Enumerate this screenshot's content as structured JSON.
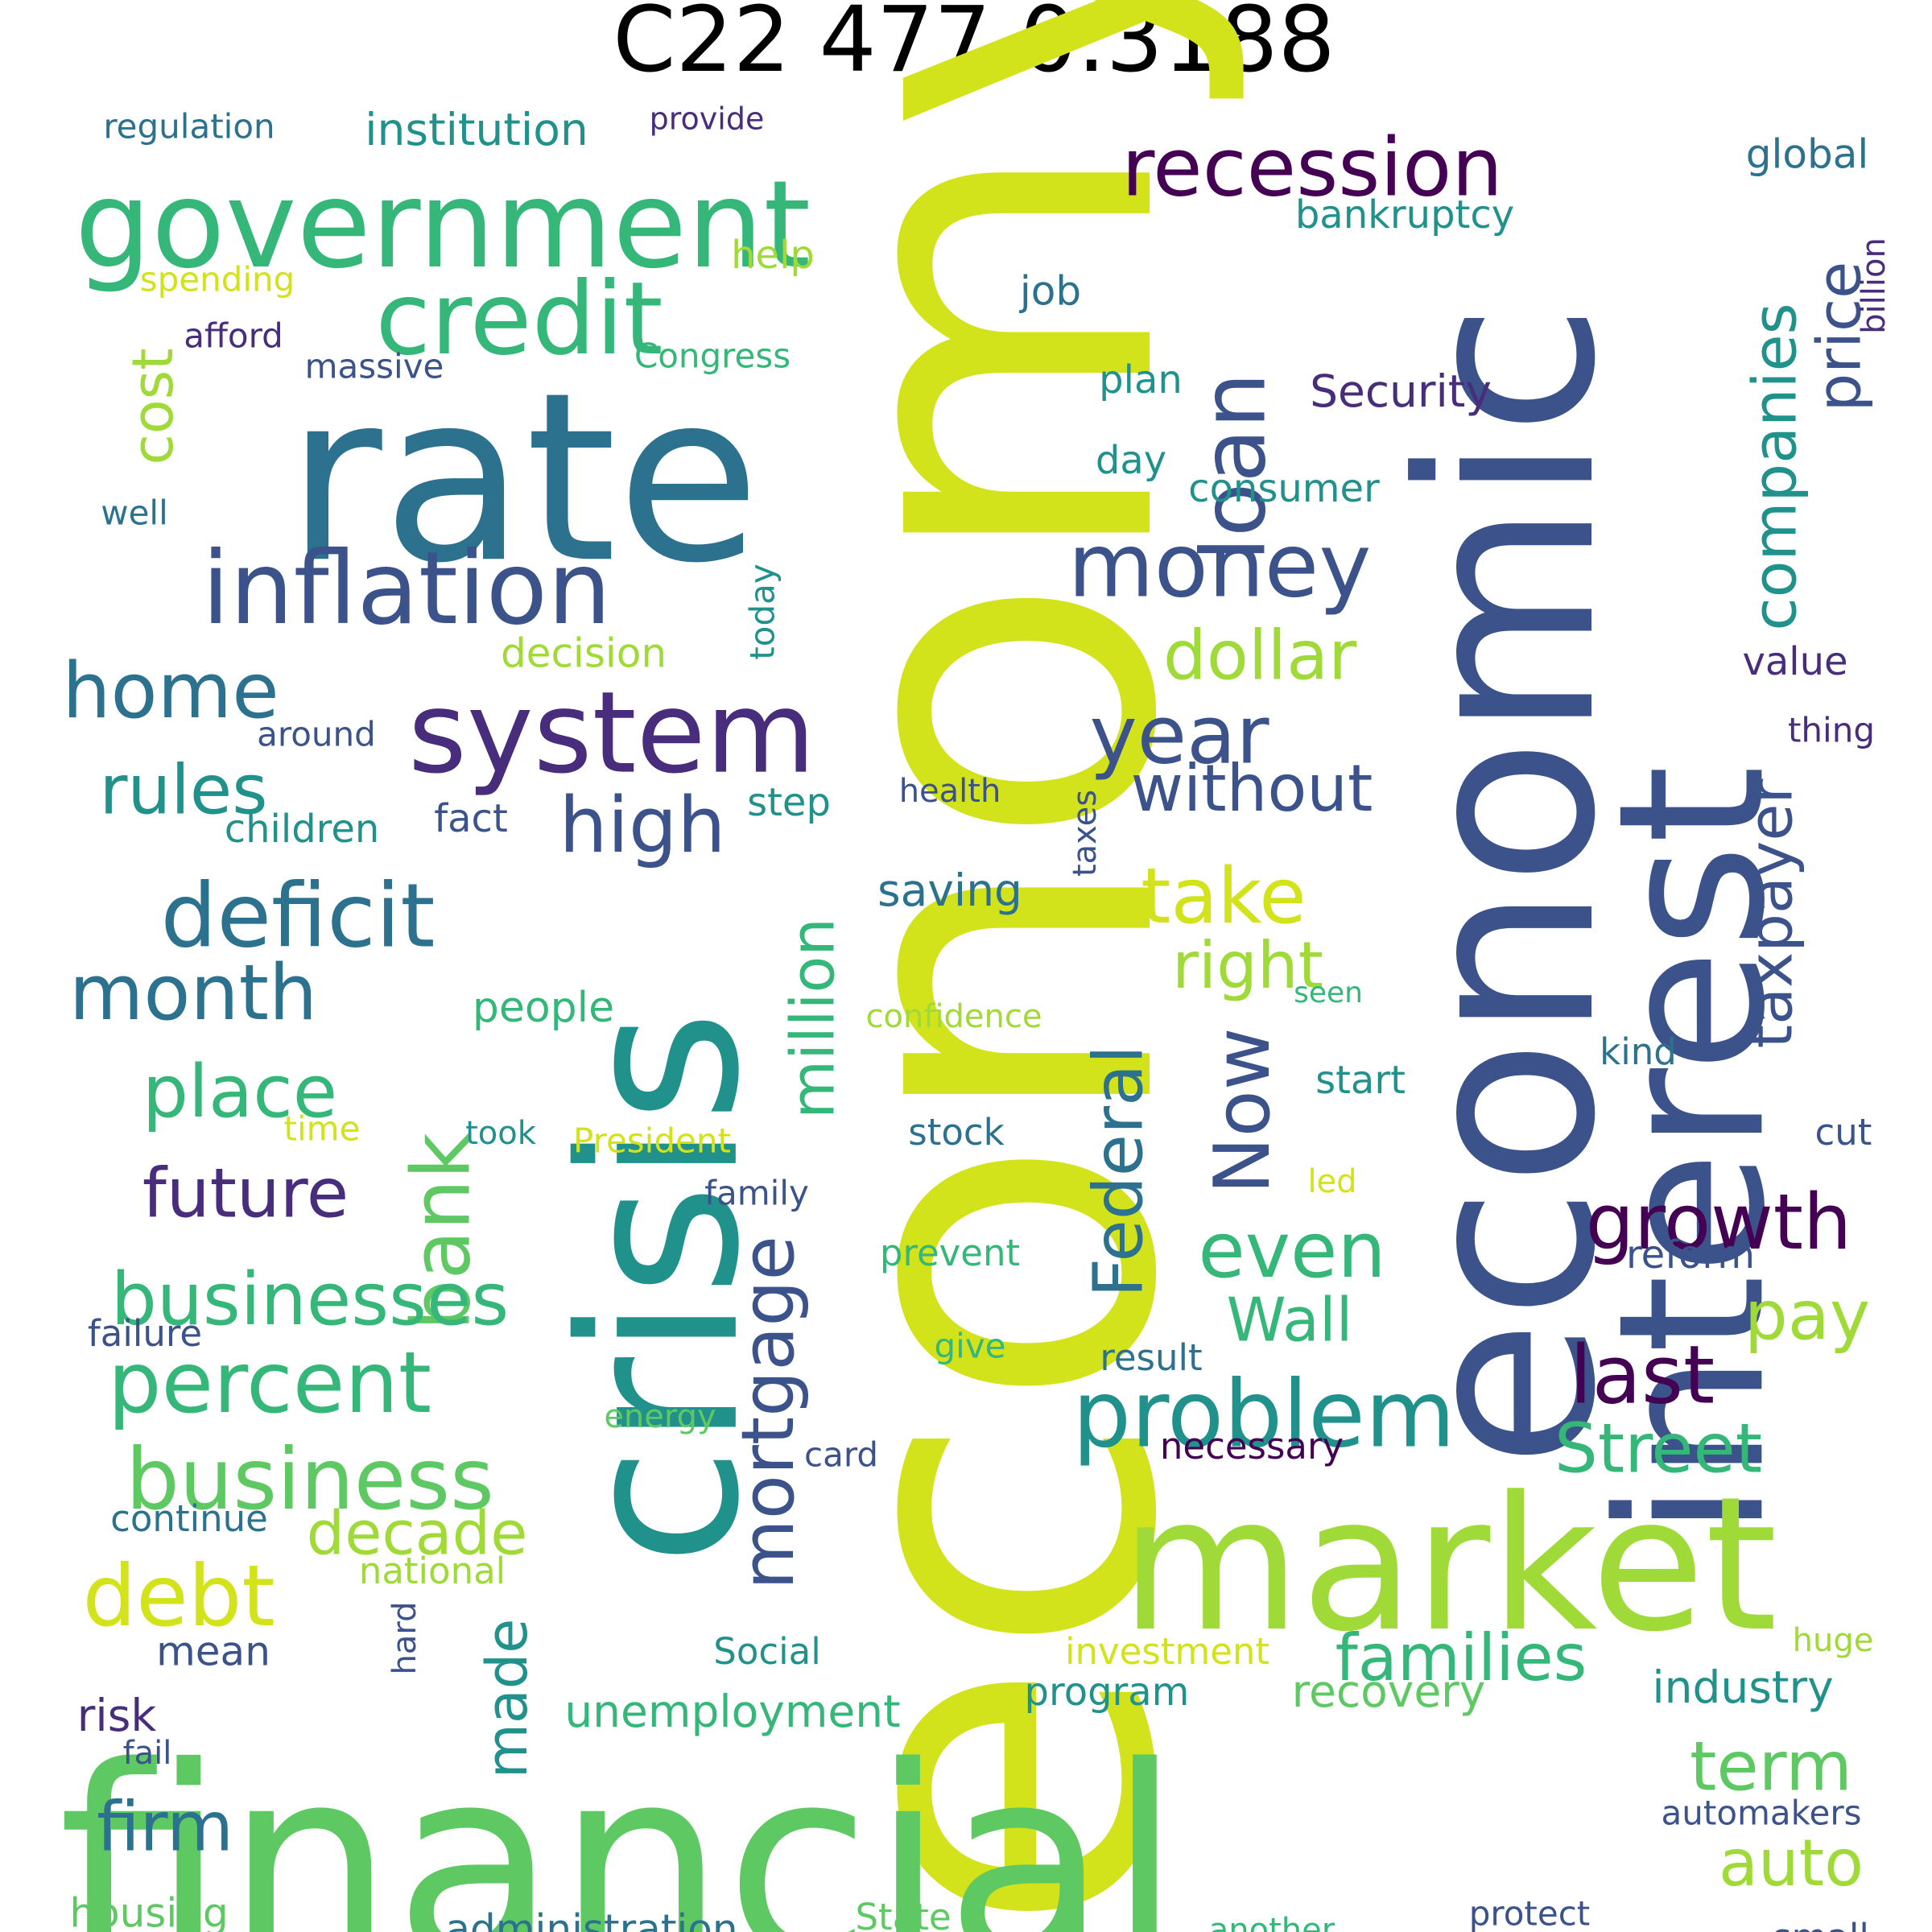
{
  "title": "C22 477 0.3188",
  "colors": {
    "background": "#ffffff",
    "title": "#000000",
    "yellow": "#d2e21b",
    "lime": "#a0da39",
    "green": "#5ec962",
    "teal_green": "#35b779",
    "teal": "#21918c",
    "blue_teal": "#2c728e",
    "blue": "#3b528b",
    "indigo": "#472d7b",
    "dark_purple": "#440154"
  },
  "words": [
    "economy",
    "financial",
    "crisis",
    "rate",
    "economic",
    "interest",
    "market",
    "government",
    "system",
    "inflation",
    "credit",
    "recession",
    "money",
    "loan",
    "deficit",
    "bank",
    "debt",
    "percent",
    "business",
    "businesses",
    "year",
    "home",
    "high",
    "rules",
    "month",
    "place",
    "future",
    "take",
    "right",
    "without",
    "dollar",
    "problem",
    "growth",
    "last",
    "even",
    "Now",
    "Federal",
    "million",
    "mortgage",
    "companies",
    "price",
    "taxpayer",
    "Street",
    "families",
    "term",
    "auto",
    "cost",
    "pay",
    "Wall",
    "decade",
    "firm",
    "unemployment",
    "made",
    "institution",
    "regulation",
    "provide",
    "global",
    "bankruptcy",
    "help",
    "spending",
    "afford",
    "massive",
    "Congress",
    "job",
    "plan",
    "Security",
    "day",
    "consumer",
    "well",
    "decision",
    "today",
    "value",
    "around",
    "thing",
    "billion",
    "children",
    "fact",
    "step",
    "health",
    "saving",
    "taxes",
    "people",
    "confidence",
    "seen",
    "kind",
    "start",
    "time",
    "took",
    "President",
    "stock",
    "cut",
    "family",
    "led",
    "reform",
    "prevent",
    "failure",
    "give",
    "result",
    "energy",
    "card",
    "necessary",
    "continue",
    "national",
    "investment",
    "huge",
    "hard",
    "mean",
    "Social",
    "program",
    "recovery",
    "industry",
    "risk",
    "fail",
    "housing",
    "administration",
    "State",
    "another",
    "protect",
    "small",
    "automakers"
  ]
}
